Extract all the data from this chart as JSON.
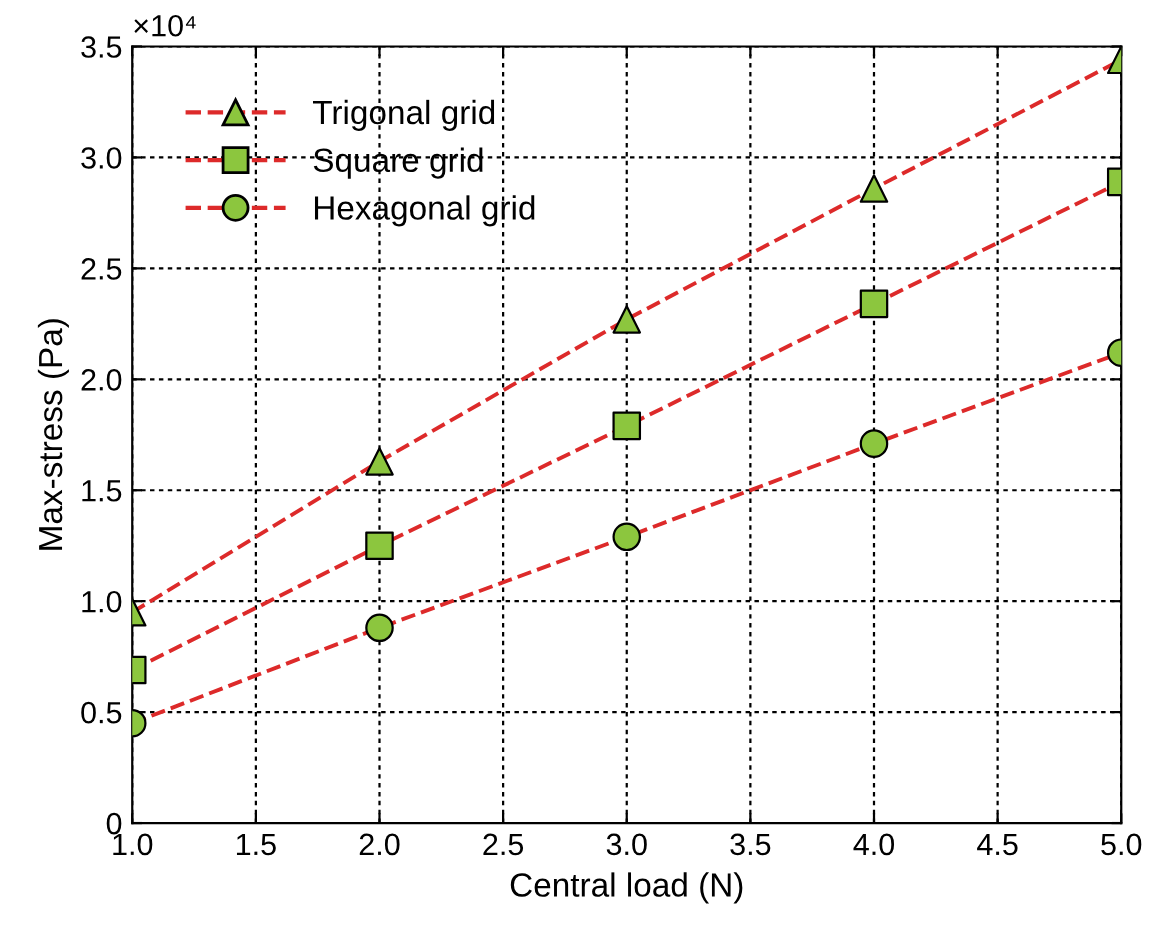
{
  "chart_data": {
    "type": "line",
    "xlabel": "Central load (N)",
    "ylabel": "Max-stress (Pa)",
    "x": [
      1.0,
      2.0,
      3.0,
      4.0,
      5.0
    ],
    "series": [
      {
        "name": "Trigonal grid",
        "color": "#dd2a2a",
        "colors": [
          "#8cc63e",
          "#8cc63e",
          "#8cc63e",
          "#8cc63e",
          "#8cc63e"
        ],
        "marker": "triangle",
        "values": [
          0.95,
          1.63,
          2.27,
          2.86,
          3.44
        ]
      },
      {
        "name": "Square grid",
        "color": "#dd2a2a",
        "colors": [
          "#8cc63e",
          "#8cc63e",
          "#8cc63e",
          "#8cc63e",
          "#8cc63e"
        ],
        "marker": "square",
        "values": [
          0.69,
          1.25,
          1.79,
          2.34,
          2.89
        ]
      },
      {
        "name": "Hexagonal grid",
        "color": "#dd2a2a",
        "colors": [
          "#8cc63e",
          "#8cc63e",
          "#8cc63e",
          "#8cc63e",
          "#8cc63e"
        ],
        "marker": "circle",
        "values": [
          0.45,
          0.88,
          1.29,
          1.71,
          2.12
        ]
      }
    ],
    "line_style": "dashed",
    "xlim": [
      1.0,
      5.0
    ],
    "xticks": [
      {
        "value": 1.0,
        "label": "1.0"
      },
      {
        "value": 1.5,
        "label": "1.5"
      },
      {
        "value": 2.0,
        "label": "2.0"
      },
      {
        "value": 2.5,
        "label": "2.5"
      },
      {
        "value": 3.0,
        "label": "3.0"
      },
      {
        "value": 3.5,
        "label": "3.5"
      },
      {
        "value": 4.0,
        "label": "4.0"
      },
      {
        "value": 4.5,
        "label": "4.5"
      },
      {
        "value": 5.0,
        "label": "5.0"
      }
    ],
    "ylim": [
      0,
      3.5
    ],
    "yticks": [
      0,
      0.5,
      {
        "value": 1.0,
        "label": "1.0"
      },
      1.5,
      {
        "value": 2.0,
        "label": "2.0"
      },
      2.5,
      {
        "value": 3.0,
        "label": "3.0"
      },
      3.5
    ],
    "annotations": [
      "×10⁴"
    ],
    "grid": true,
    "legend": "top left"
  }
}
